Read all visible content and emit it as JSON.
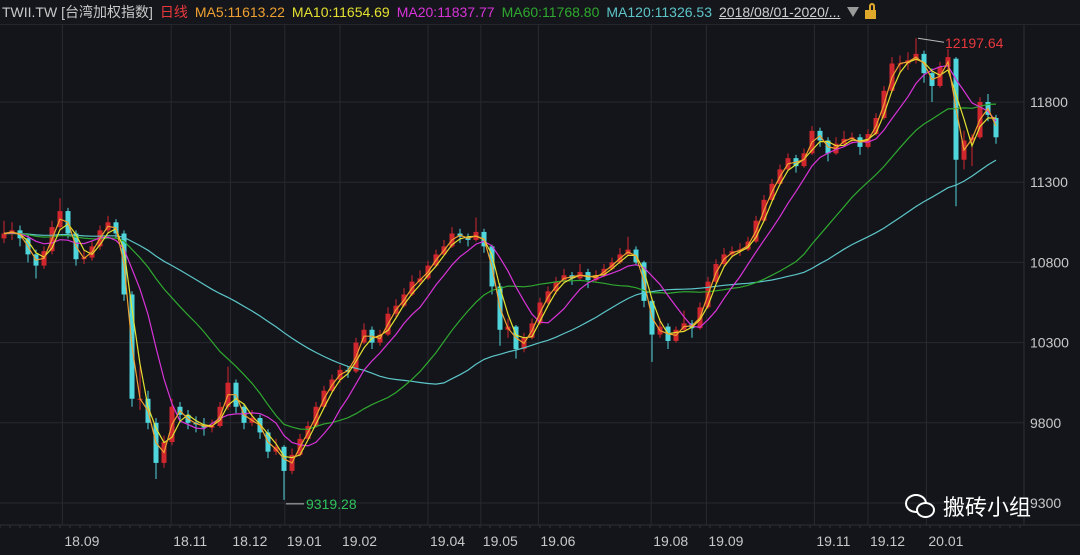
{
  "header": {
    "symbol": "TWII.TW [台湾加权指数]",
    "period": "日线",
    "ma5": "MA5:11613.22",
    "ma10": "MA10:11654.69",
    "ma20": "MA20:11837.77",
    "ma60": "MA60:11768.80",
    "ma120": "MA120:11326.53",
    "date_range": "2018/08/01-2020/...",
    "dropdown_icon": "triangle-down-icon",
    "lock_icon": "unlock-icon"
  },
  "watermark": {
    "icon": "wechat-icon",
    "text": "搬砖小组"
  },
  "colors": {
    "background": "#14151a",
    "up": "#d0262e",
    "down": "#4fd6dc",
    "ma5": "#f0a030",
    "ma10": "#e3e030",
    "ma20": "#d833d8",
    "ma60": "#2fa82f",
    "ma120": "#5cc6c9",
    "period": "#e8383d",
    "max_label": "#e8383d",
    "min_label": "#2fc25b"
  },
  "chart_data": {
    "type": "candlestick",
    "title": "",
    "ylim": [
      9250,
      12350
    ],
    "y_ticks": [
      11800,
      11300,
      10800,
      10300,
      9800,
      9300
    ],
    "y_tick_labels": [
      "11800",
      "11300",
      "10800",
      "10300",
      "9800",
      "9300"
    ],
    "x_ticks": [
      {
        "label": "18.09",
        "at": 7.3
      },
      {
        "label": "18.11",
        "at": 20.9
      },
      {
        "label": "18.12",
        "at": 28.3
      },
      {
        "label": "19.01",
        "at": 35.1
      },
      {
        "label": "19.02",
        "at": 42
      },
      {
        "label": "19.04",
        "at": 53
      },
      {
        "label": "19.05",
        "at": 59.6
      },
      {
        "label": "19.06",
        "at": 66.8
      },
      {
        "label": "19.08",
        "at": 80.9
      },
      {
        "label": "19.09",
        "at": 87.8
      },
      {
        "label": "19.11",
        "at": 101.3
      },
      {
        "label": "19.12",
        "at": 108
      },
      {
        "label": "20.01",
        "at": 115.3
      }
    ],
    "grid": true,
    "max_annotation": {
      "label": "12197.64",
      "value": 12197.64,
      "at": 114
    },
    "min_annotation": {
      "label": "9319.28",
      "value": 9319.28,
      "at": 35
    },
    "ma_series": [
      "MA5",
      "MA10",
      "MA20",
      "MA60",
      "MA120"
    ],
    "candles_ohlc": [
      [
        10950,
        11060,
        10920,
        10980
      ],
      [
        10980,
        11050,
        10940,
        11000
      ],
      [
        11000,
        11030,
        10900,
        10950
      ],
      [
        10950,
        10980,
        10800,
        10850
      ],
      [
        10850,
        10880,
        10700,
        10780
      ],
      [
        10780,
        10900,
        10760,
        10870
      ],
      [
        10870,
        11060,
        10850,
        11020
      ],
      [
        11020,
        11200,
        11000,
        11120
      ],
      [
        11120,
        11140,
        10950,
        10980
      ],
      [
        10980,
        11000,
        10780,
        10820
      ],
      [
        10820,
        10880,
        10790,
        10830
      ],
      [
        10830,
        10930,
        10810,
        10900
      ],
      [
        10900,
        11030,
        10880,
        11000
      ],
      [
        11000,
        11090,
        10980,
        11050
      ],
      [
        11050,
        11070,
        10950,
        10980
      ],
      [
        10980,
        11000,
        10560,
        10600
      ],
      [
        10600,
        10620,
        9900,
        9950
      ],
      [
        9950,
        10150,
        9880,
        9950
      ],
      [
        9950,
        10000,
        9760,
        9800
      ],
      [
        9800,
        9830,
        9450,
        9550
      ],
      [
        9550,
        9720,
        9520,
        9680
      ],
      [
        9680,
        9950,
        9660,
        9900
      ],
      [
        9900,
        9930,
        9800,
        9850
      ],
      [
        9850,
        9880,
        9760,
        9800
      ],
      [
        9800,
        9840,
        9740,
        9790
      ],
      [
        9790,
        9830,
        9720,
        9770
      ],
      [
        9770,
        9820,
        9740,
        9780
      ],
      [
        9780,
        9930,
        9770,
        9900
      ],
      [
        9900,
        10150,
        9880,
        10050
      ],
      [
        10050,
        10070,
        9860,
        9900
      ],
      [
        9900,
        9920,
        9760,
        9800
      ],
      [
        9800,
        9880,
        9780,
        9830
      ],
      [
        9830,
        9850,
        9700,
        9740
      ],
      [
        9740,
        9760,
        9580,
        9620
      ],
      [
        9620,
        9700,
        9600,
        9650
      ],
      [
        9650,
        9660,
        9319.28,
        9500
      ],
      [
        9500,
        9640,
        9480,
        9600
      ],
      [
        9600,
        9730,
        9590,
        9700
      ],
      [
        9700,
        9810,
        9690,
        9780
      ],
      [
        9780,
        9930,
        9770,
        9900
      ],
      [
        9900,
        10030,
        9890,
        10000
      ],
      [
        10000,
        10100,
        9990,
        10070
      ],
      [
        10070,
        10160,
        10050,
        10130
      ],
      [
        10130,
        10150,
        10080,
        10120
      ],
      [
        10120,
        10330,
        10110,
        10300
      ],
      [
        10300,
        10420,
        10290,
        10380
      ],
      [
        10380,
        10400,
        10260,
        10300
      ],
      [
        10300,
        10380,
        10280,
        10350
      ],
      [
        10350,
        10520,
        10340,
        10480
      ],
      [
        10480,
        10570,
        10460,
        10530
      ],
      [
        10530,
        10640,
        10520,
        10600
      ],
      [
        10600,
        10720,
        10590,
        10680
      ],
      [
        10680,
        10750,
        10660,
        10700
      ],
      [
        10700,
        10810,
        10690,
        10780
      ],
      [
        10780,
        10880,
        10770,
        10850
      ],
      [
        10850,
        10940,
        10840,
        10900
      ],
      [
        10900,
        11020,
        10890,
        10980
      ],
      [
        10980,
        11010,
        10920,
        10960
      ],
      [
        10960,
        10980,
        10900,
        10940
      ],
      [
        10940,
        11080,
        10930,
        10990
      ],
      [
        10990,
        11010,
        10860,
        10900
      ],
      [
        10900,
        10910,
        10600,
        10650
      ],
      [
        10650,
        10670,
        10280,
        10380
      ],
      [
        10380,
        10450,
        10330,
        10400
      ],
      [
        10400,
        10410,
        10200,
        10260
      ],
      [
        10260,
        10360,
        10240,
        10330
      ],
      [
        10330,
        10450,
        10320,
        10420
      ],
      [
        10420,
        10580,
        10410,
        10550
      ],
      [
        10550,
        10650,
        10540,
        10620
      ],
      [
        10620,
        10710,
        10600,
        10680
      ],
      [
        10680,
        10760,
        10670,
        10720
      ],
      [
        10720,
        10740,
        10660,
        10700
      ],
      [
        10700,
        10790,
        10690,
        10740
      ],
      [
        10740,
        10760,
        10640,
        10690
      ],
      [
        10690,
        10750,
        10680,
        10720
      ],
      [
        10720,
        10790,
        10710,
        10760
      ],
      [
        10760,
        10830,
        10750,
        10800
      ],
      [
        10800,
        10890,
        10790,
        10850
      ],
      [
        10850,
        10960,
        10840,
        10880
      ],
      [
        10880,
        10900,
        10780,
        10800
      ],
      [
        10800,
        10810,
        10520,
        10560
      ],
      [
        10560,
        10580,
        10180,
        10350
      ],
      [
        10350,
        10450,
        10330,
        10400
      ],
      [
        10400,
        10420,
        10260,
        10310
      ],
      [
        10310,
        10400,
        10300,
        10380
      ],
      [
        10380,
        10500,
        10370,
        10420
      ],
      [
        10420,
        10440,
        10330,
        10390
      ],
      [
        10390,
        10550,
        10380,
        10520
      ],
      [
        10520,
        10710,
        10510,
        10680
      ],
      [
        10680,
        10820,
        10670,
        10790
      ],
      [
        10790,
        10890,
        10780,
        10850
      ],
      [
        10850,
        10900,
        10830,
        10870
      ],
      [
        10870,
        10920,
        10840,
        10880
      ],
      [
        10880,
        10960,
        10870,
        10930
      ],
      [
        10930,
        11090,
        10920,
        11060
      ],
      [
        11060,
        11220,
        11050,
        11190
      ],
      [
        11190,
        11320,
        11180,
        11290
      ],
      [
        11290,
        11410,
        11280,
        11380
      ],
      [
        11380,
        11480,
        11370,
        11450
      ],
      [
        11450,
        11470,
        11360,
        11400
      ],
      [
        11400,
        11510,
        11390,
        11480
      ],
      [
        11480,
        11650,
        11470,
        11620
      ],
      [
        11620,
        11640,
        11520,
        11560
      ],
      [
        11560,
        11580,
        11430,
        11480
      ],
      [
        11480,
        11580,
        11470,
        11540
      ],
      [
        11540,
        11620,
        11530,
        11570
      ],
      [
        11570,
        11610,
        11540,
        11580
      ],
      [
        11580,
        11600,
        11470,
        11520
      ],
      [
        11520,
        11630,
        11510,
        11600
      ],
      [
        11600,
        11730,
        11590,
        11700
      ],
      [
        11700,
        11900,
        11690,
        11870
      ],
      [
        11870,
        12080,
        11860,
        12040
      ],
      [
        12040,
        12090,
        11980,
        12040
      ],
      [
        12040,
        12110,
        12000,
        12060
      ],
      [
        12060,
        12197.64,
        12040,
        12100
      ],
      [
        12100,
        12120,
        11920,
        11980
      ],
      [
        11980,
        12010,
        11800,
        11900
      ],
      [
        11900,
        12050,
        11890,
        12020
      ],
      [
        12020,
        12130,
        12000,
        12080
      ],
      [
        12070,
        12080,
        11150,
        11440
      ],
      [
        11440,
        11620,
        11380,
        11560
      ],
      [
        11560,
        11600,
        11400,
        11580
      ],
      [
        11580,
        11830,
        11570,
        11800
      ],
      [
        11800,
        11850,
        11680,
        11720
      ],
      [
        11700,
        11720,
        11540,
        11580
      ]
    ]
  }
}
